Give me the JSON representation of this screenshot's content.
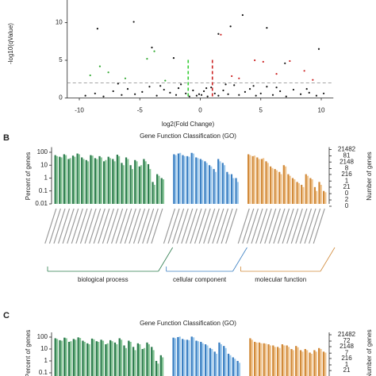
{
  "chart_data": [
    {
      "type": "scatter",
      "xlabel": "log2(Fold Change)",
      "ylabel": "-log10(qValue)",
      "xlim": [
        -11,
        11
      ],
      "ylim": [
        0,
        13
      ],
      "xticks": [
        -10,
        -5,
        0,
        5,
        10
      ],
      "yticks": [
        0,
        5,
        10
      ],
      "threshold_lines": [
        {
          "axis": "y",
          "value": 2,
          "color": "#888888"
        },
        {
          "axis": "x",
          "value": -1,
          "color": "#33cc33"
        },
        {
          "axis": "x",
          "value": 1,
          "color": "#cc2222"
        }
      ],
      "series": [
        {
          "color": "#111111",
          "x": [
            -9.5,
            -8.7,
            -8,
            -7.2,
            -6.5,
            -6,
            -5.4,
            -4.8,
            -4.2,
            -3.6,
            -3,
            -2.5,
            -2,
            -1.6,
            -1.2,
            -0.9,
            -0.6,
            -0.3,
            -0.1,
            0.1,
            0.3,
            0.6,
            0.9,
            1.2,
            1.5,
            1.9,
            2.3,
            2.8,
            3.2,
            3.7,
            4.1,
            4.6,
            5,
            5.5,
            6,
            6.6,
            7.1,
            7.7,
            8.3,
            9,
            9.6,
            10.2,
            -6.8,
            -3.3,
            -1.8,
            2.1,
            4.4,
            6.3,
            8.8,
            0.5,
            -8.5,
            -5.5,
            -4,
            2.5,
            3.5,
            5.5,
            7,
            9.8,
            -2.2,
            1.5
          ],
          "values": [
            0.3,
            0.6,
            0.2,
            0.9,
            0.4,
            1.2,
            0.5,
            0.8,
            1.5,
            0.3,
            1.1,
            0.7,
            0.4,
            1.8,
            0.6,
            0.2,
            1.0,
            0.3,
            0.5,
            0.4,
            0.9,
            0.2,
            1.4,
            0.6,
            0.3,
            1.0,
            0.5,
            1.7,
            0.4,
            0.8,
            1.2,
            0.3,
            0.6,
            1.5,
            0.4,
            0.9,
            0.2,
            1.1,
            0.5,
            0.7,
            0.3,
            0.6,
            1.9,
            1.6,
            1.3,
            1.8,
            1.6,
            1.4,
            1.2,
            1.3,
            9.2,
            10.1,
            6.7,
            9.5,
            11,
            9.3,
            4.6,
            6.5,
            5.3,
            8.5
          ]
        },
        {
          "color": "#cc2222",
          "x": [
            1.7,
            3.2,
            4.5,
            5.2,
            6.3,
            7.4,
            8.6,
            2.6,
            9.3
          ],
          "values": [
            8.4,
            2.6,
            5.0,
            4.8,
            3.2,
            4.9,
            3.6,
            2.9,
            2.4
          ]
        },
        {
          "color": "#33aa33",
          "x": [
            -8.3,
            -7.6,
            -6.2,
            -4.4,
            -2.9,
            -9.1,
            -3.8
          ],
          "values": [
            4.2,
            3.4,
            2.6,
            5.2,
            2.3,
            3.0,
            6.2
          ]
        }
      ]
    },
    {
      "type": "go-bar",
      "panel": "B",
      "title": "Gene Function Classification (GO)",
      "ylabel": "Percent of genes",
      "y2label": "Number of genes",
      "log": true,
      "ylim": [
        0.01,
        250
      ],
      "yticks": [
        100,
        10,
        1,
        0.1,
        0.01
      ],
      "y2lim": [
        0.97,
        33000
      ],
      "y2ticks": [
        21482,
        2148,
        216,
        21,
        2
      ],
      "y3lim": [
        0.0125,
        393
      ],
      "y3ticks": [
        81,
        8,
        {
          "value": 0.81,
          "label": "1"
        },
        {
          "value": 0.081,
          "label": "0"
        },
        {
          "value": 0.0081,
          "label": "0"
        }
      ],
      "groups": [
        {
          "name": "biological process",
          "series": [
            {
              "color": "#2e7d4e",
              "values": [
                60,
                45,
                70,
                30,
                55,
                80,
                40,
                25,
                60,
                35,
                50,
                20,
                45,
                30,
                65,
                15,
                40,
                10,
                25,
                8,
                30,
                12,
                0.5,
                2,
                1
              ]
            },
            {
              "color": "#86c596",
              "values": [
                50,
                40,
                60,
                35,
                45,
                70,
                30,
                20,
                55,
                30,
                40,
                25,
                35,
                20,
                50,
                10,
                30,
                5,
                20,
                10,
                20,
                5,
                0.3,
                1.5,
                0.8
              ]
            }
          ]
        },
        {
          "name": "cellular component",
          "series": [
            {
              "color": "#3b7fc2",
              "values": [
                70,
                80,
                60,
                50,
                90,
                40,
                30,
                20,
                10,
                5,
                30,
                15,
                3,
                2,
                1
              ]
            },
            {
              "color": "#9cc8ec",
              "values": [
                60,
                90,
                50,
                45,
                80,
                35,
                25,
                15,
                8,
                3,
                20,
                10,
                2,
                1,
                0.5
              ]
            }
          ]
        },
        {
          "name": "molecular function",
          "series": [
            {
              "color": "#d18a3a",
              "values": [
                70,
                50,
                40,
                30,
                20,
                8,
                5,
                3,
                10,
                2,
                1,
                0.5,
                0.3,
                2,
                1,
                0.2,
                0.5,
                0.1
              ]
            },
            {
              "color": "#f0c48e",
              "values": [
                60,
                55,
                30,
                35,
                15,
                6,
                4,
                2,
                8,
                1.5,
                0.8,
                0.4,
                0.2,
                1.5,
                0.8,
                0.1,
                0.3,
                0.08
              ]
            }
          ]
        }
      ]
    },
    {
      "type": "go-bar",
      "panel": "C",
      "title": "Gene Function Classification (GO)",
      "ylabel": "Percent of genes",
      "y2label": "Number of genes",
      "log": true,
      "ylim": [
        0.01,
        250
      ],
      "yticks": [
        100,
        10,
        1,
        0.1
      ],
      "y2lim": [
        1.35,
        34000
      ],
      "y2ticks": [
        21482,
        2148,
        216,
        21
      ],
      "y3lim": [
        0.0155,
        389
      ],
      "y3ticks": [
        72,
        7,
        {
          "value": 0.72,
          "label": "1"
        }
      ],
      "groups": [
        {
          "series": [
            {
              "color": "#2e7d4e",
              "values": [
                80,
                55,
                90,
                40,
                70,
                95,
                50,
                30,
                75,
                45,
                60,
                25,
                55,
                35,
                80,
                20,
                50,
                15,
                30,
                10,
                35,
                15,
                1,
                3
              ]
            },
            {
              "color": "#86c596",
              "values": [
                70,
                50,
                80,
                45,
                60,
                85,
                40,
                25,
                65,
                40,
                50,
                30,
                45,
                25,
                60,
                12,
                40,
                8,
                25,
                12,
                25,
                8,
                0.6,
                2
              ]
            }
          ]
        },
        {
          "series": [
            {
              "color": "#3b7fc2",
              "values": [
                90,
                100,
                70,
                60,
                110,
                50,
                40,
                25,
                12,
                6,
                35,
                18,
                4,
                2,
                1
              ]
            },
            {
              "color": "#9cc8ec",
              "values": [
                80,
                110,
                60,
                55,
                95,
                45,
                30,
                20,
                10,
                4,
                25,
                12,
                3,
                1.5,
                0.7
              ]
            }
          ]
        },
        {
          "series": [
            {
              "color": "#d18a3a",
              "values": [
                80,
                40,
                35,
                30,
                25,
                20,
                15,
                25,
                20,
                10,
                18,
                8,
                10,
                5,
                8,
                12,
                6
              ]
            },
            {
              "color": "#f0c48e",
              "values": [
                60,
                35,
                30,
                28,
                20,
                15,
                12,
                20,
                15,
                8,
                14,
                6,
                8,
                4,
                6,
                10,
                5
              ]
            }
          ]
        }
      ]
    }
  ]
}
